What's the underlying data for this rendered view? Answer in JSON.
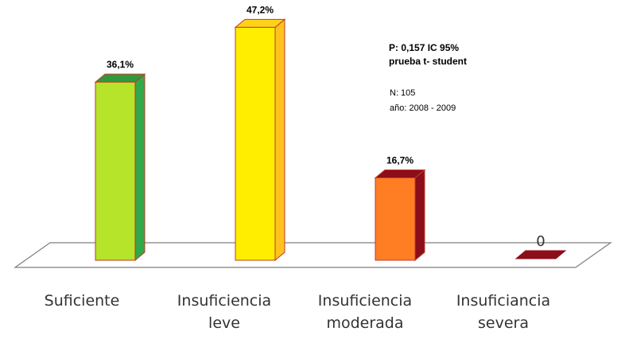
{
  "chart_data": {
    "type": "bar",
    "categories": [
      [
        "Suficiente"
      ],
      [
        "Insuficiencia",
        "leve"
      ],
      [
        "Insuficiencia",
        "moderada"
      ],
      [
        "Insuficiancia",
        "severa"
      ]
    ],
    "values": [
      36.1,
      47.2,
      16.7,
      0
    ],
    "data_labels": [
      "36,1%",
      "47,2%",
      "16,7%",
      "0"
    ],
    "bar_colors": [
      {
        "front": "#b5e42a",
        "side": "#33a84a",
        "top": "#2f9a3c"
      },
      {
        "front": "#ffee00",
        "side": "#ffc21e",
        "top": "#ffd21a"
      },
      {
        "front": "#ff7e24",
        "side": "#8b0e1a",
        "top": "#8b0e1a"
      },
      {
        "front": "#8b0e1a",
        "side": "#8b0e1a",
        "top": "#9b1420"
      }
    ],
    "edge_color": "#c0392b",
    "ylim": [
      0,
      50
    ],
    "title": "",
    "xlabel": "",
    "ylabel": "",
    "grid": false,
    "annotations": {
      "stats_line1": "P: 0,157 IC 95%",
      "stats_line2": "prueba t- student",
      "n": "N: 105",
      "year": "año: 2008 - 2009"
    }
  }
}
